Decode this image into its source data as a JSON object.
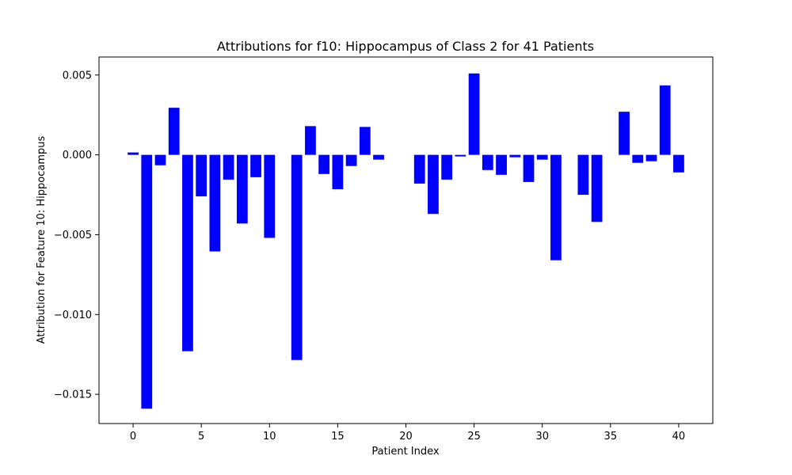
{
  "chart_data": {
    "type": "bar",
    "title": "Attributions for f10: Hippocampus of Class 2 for 41 Patients",
    "xlabel": "Patient Index",
    "ylabel": "Attribution for Feature 10: Hippocampus",
    "x": [
      0,
      1,
      2,
      3,
      4,
      5,
      6,
      7,
      8,
      9,
      10,
      11,
      12,
      13,
      14,
      15,
      16,
      17,
      18,
      19,
      20,
      21,
      22,
      23,
      24,
      25,
      26,
      27,
      28,
      29,
      30,
      31,
      32,
      33,
      34,
      35,
      36,
      37,
      38,
      39,
      40
    ],
    "values": [
      0.00015,
      -0.0159,
      -0.00065,
      0.00295,
      -0.0123,
      -0.0026,
      -0.00605,
      -0.00155,
      -0.0043,
      -0.0014,
      -0.0052,
      0.0,
      -0.01285,
      0.0018,
      -0.0012,
      -0.00215,
      -0.0007,
      0.00175,
      -0.0003,
      0.0,
      0.0,
      -0.0018,
      -0.0037,
      -0.00155,
      -0.0001,
      0.0051,
      -0.00095,
      -0.00125,
      -0.00015,
      -0.0017,
      -0.0003,
      -0.0066,
      0.0,
      -0.0025,
      -0.0042,
      0.0,
      0.0027,
      -0.0005,
      -0.0004,
      0.00435,
      -0.0011
    ],
    "xlim": [
      -2.5,
      42.5
    ],
    "ylim": [
      -0.01683,
      0.00613
    ],
    "xticks": [
      0,
      5,
      10,
      15,
      20,
      25,
      30,
      35,
      40
    ],
    "xtick_labels": [
      "0",
      "5",
      "10",
      "15",
      "20",
      "25",
      "30",
      "35",
      "40"
    ],
    "yticks": [
      0.005,
      0.0,
      -0.005,
      -0.01,
      -0.015
    ],
    "ytick_labels": [
      "0.005",
      "0.000",
      "−0.005",
      "−0.010",
      "−0.015"
    ],
    "bar_color": "#0000ff",
    "grid": false,
    "legend": "none"
  }
}
